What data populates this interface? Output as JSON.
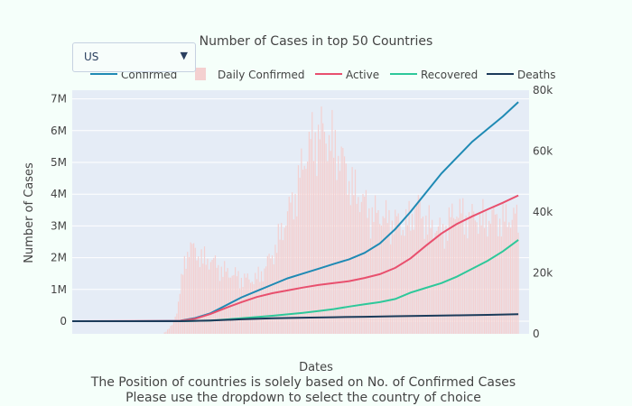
{
  "dropdown": {
    "selected": "US"
  },
  "footer": {
    "line1": "The Position of countries is solely based on No. of Confirmed Cases",
    "line2": "Please use the dropdown to select the country of choice"
  },
  "colors": {
    "confirmed": "#1f8ab4",
    "daily": "#f4d0d0",
    "active": "#e8506e",
    "recovered": "#2ec89a",
    "deaths": "#1b3b5a",
    "plot_bg": "#e5ecf6",
    "page_bg": "#f5fffa"
  },
  "chart_data": {
    "type": "line",
    "title": "Number of Cases in top 50 Countries",
    "xlabel": "Dates",
    "ylabel": "Number of Cases",
    "y_ticks": [
      "0",
      "1M",
      "2M",
      "3M",
      "4M",
      "5M",
      "6M",
      "7M"
    ],
    "y2_ticks": [
      "0",
      "20k",
      "40k",
      "60k",
      "80k"
    ],
    "ylim": [
      0,
      7000000
    ],
    "y2lim": [
      0,
      80000
    ],
    "grid": true,
    "legend_position": "top",
    "x_index_range": [
      0,
      270
    ],
    "series": [
      {
        "name": "Confirmed",
        "axis": "y",
        "kind": "line",
        "points": [
          [
            0,
            0
          ],
          [
            40,
            1000
          ],
          [
            70,
            15000
          ],
          [
            80,
            100000
          ],
          [
            90,
            250000
          ],
          [
            100,
            500000
          ],
          [
            110,
            750000
          ],
          [
            120,
            950000
          ],
          [
            130,
            1150000
          ],
          [
            140,
            1350000
          ],
          [
            150,
            1500000
          ],
          [
            160,
            1650000
          ],
          [
            170,
            1800000
          ],
          [
            180,
            1950000
          ],
          [
            190,
            2150000
          ],
          [
            200,
            2450000
          ],
          [
            210,
            2900000
          ],
          [
            220,
            3450000
          ],
          [
            230,
            4050000
          ],
          [
            240,
            4650000
          ],
          [
            250,
            5150000
          ],
          [
            260,
            5650000
          ],
          [
            270,
            6050000
          ],
          [
            280,
            6450000
          ],
          [
            290,
            6900000
          ]
        ]
      },
      {
        "name": "Daily Confirmed",
        "axis": "y2",
        "kind": "bar",
        "points": [
          [
            60,
            500
          ],
          [
            65,
            3000
          ],
          [
            68,
            8000
          ],
          [
            70,
            15000
          ],
          [
            72,
            22000
          ],
          [
            74,
            28000
          ],
          [
            76,
            31000
          ],
          [
            78,
            30000
          ],
          [
            80,
            29000
          ],
          [
            85,
            27000
          ],
          [
            90,
            26000
          ],
          [
            95,
            24000
          ],
          [
            100,
            22000
          ],
          [
            105,
            21000
          ],
          [
            110,
            20000
          ],
          [
            115,
            19000
          ],
          [
            120,
            20000
          ],
          [
            125,
            23000
          ],
          [
            130,
            28000
          ],
          [
            135,
            35000
          ],
          [
            140,
            42000
          ],
          [
            145,
            50000
          ],
          [
            150,
            60000
          ],
          [
            155,
            68000
          ],
          [
            160,
            72000
          ],
          [
            165,
            70000
          ],
          [
            170,
            68000
          ],
          [
            175,
            62000
          ],
          [
            180,
            55000
          ],
          [
            185,
            50000
          ],
          [
            190,
            46000
          ],
          [
            195,
            43000
          ],
          [
            200,
            42000
          ],
          [
            205,
            41000
          ],
          [
            210,
            40000
          ],
          [
            215,
            38000
          ],
          [
            220,
            42000
          ],
          [
            225,
            45000
          ],
          [
            230,
            40000
          ],
          [
            235,
            38000
          ],
          [
            240,
            36000
          ],
          [
            245,
            40000
          ],
          [
            250,
            44000
          ],
          [
            255,
            42000
          ],
          [
            260,
            41000
          ]
        ]
      },
      {
        "name": "Active",
        "axis": "y",
        "points": [
          [
            0,
            0
          ],
          [
            70,
            10000
          ],
          [
            80,
            80000
          ],
          [
            90,
            230000
          ],
          [
            100,
            420000
          ],
          [
            110,
            600000
          ],
          [
            120,
            760000
          ],
          [
            130,
            880000
          ],
          [
            140,
            970000
          ],
          [
            150,
            1060000
          ],
          [
            160,
            1140000
          ],
          [
            170,
            1200000
          ],
          [
            180,
            1260000
          ],
          [
            190,
            1360000
          ],
          [
            200,
            1480000
          ],
          [
            210,
            1680000
          ],
          [
            220,
            1980000
          ],
          [
            230,
            2380000
          ],
          [
            240,
            2760000
          ],
          [
            250,
            3060000
          ],
          [
            260,
            3300000
          ],
          [
            270,
            3520000
          ],
          [
            280,
            3730000
          ],
          [
            290,
            3960000
          ]
        ]
      },
      {
        "name": "Recovered",
        "axis": "y",
        "points": [
          [
            0,
            0
          ],
          [
            70,
            1000
          ],
          [
            90,
            20000
          ],
          [
            110,
            90000
          ],
          [
            130,
            170000
          ],
          [
            150,
            260000
          ],
          [
            160,
            320000
          ],
          [
            170,
            380000
          ],
          [
            180,
            460000
          ],
          [
            190,
            530000
          ],
          [
            200,
            600000
          ],
          [
            210,
            700000
          ],
          [
            220,
            900000
          ],
          [
            230,
            1050000
          ],
          [
            240,
            1200000
          ],
          [
            250,
            1400000
          ],
          [
            260,
            1650000
          ],
          [
            270,
            1900000
          ],
          [
            280,
            2200000
          ],
          [
            290,
            2560000
          ]
        ]
      },
      {
        "name": "Deaths",
        "axis": "y",
        "points": [
          [
            0,
            0
          ],
          [
            70,
            1000
          ],
          [
            90,
            20000
          ],
          [
            110,
            60000
          ],
          [
            130,
            90000
          ],
          [
            150,
            110000
          ],
          [
            170,
            125000
          ],
          [
            190,
            140000
          ],
          [
            210,
            155000
          ],
          [
            230,
            170000
          ],
          [
            250,
            185000
          ],
          [
            270,
            200000
          ],
          [
            290,
            220000
          ]
        ]
      }
    ]
  }
}
